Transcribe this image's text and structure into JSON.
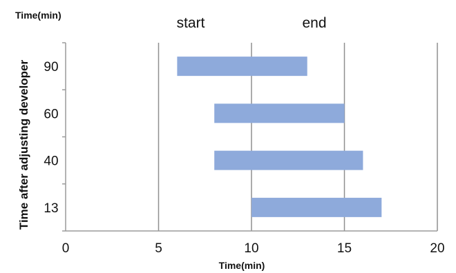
{
  "chart_data": {
    "type": "bar",
    "orientation": "horizontal",
    "title": "",
    "top_left_label": "Time(min)",
    "xlabel": "Time(min)",
    "ylabel": "Time after adjusting developer",
    "xlim": [
      0,
      20
    ],
    "xticks": [
      "0",
      "5",
      "10",
      "15",
      "20"
    ],
    "categories": [
      "90",
      "60",
      "40",
      "13"
    ],
    "series": [
      {
        "color": "#8eaadb",
        "ranges": [
          [
            6,
            13
          ],
          [
            8,
            15
          ],
          [
            8,
            16
          ],
          [
            10,
            17
          ]
        ]
      }
    ],
    "annotations": [
      "start",
      "end"
    ],
    "grid": "vertical",
    "legend": "none"
  }
}
